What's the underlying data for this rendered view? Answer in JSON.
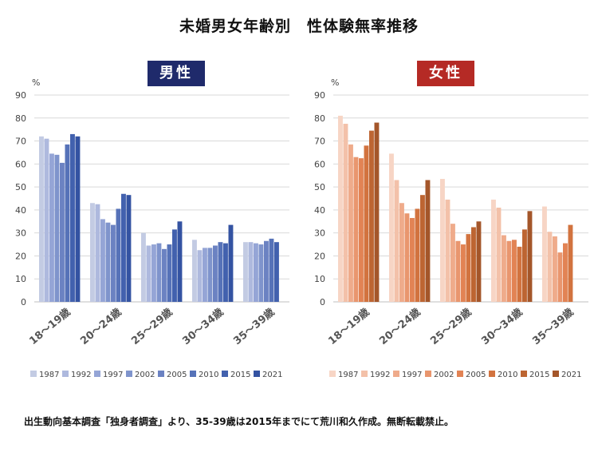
{
  "title": "未婚男女年齢別　性体験無率推移",
  "source_note": "出生動向基本調査「独身者調査」より、35-39歳は2015年までにて荒川和久作成。無断転載禁止。",
  "chart_data": [
    {
      "type": "bar",
      "title": "男性",
      "title_color": "#1f2a6b",
      "ylabel": "%",
      "ylim": [
        0,
        90
      ],
      "yticks": [
        0,
        10,
        20,
        30,
        40,
        50,
        60,
        70,
        80,
        90
      ],
      "grid": true,
      "legend_position": "bottom",
      "categories": [
        "18～19歳",
        "20～24歳",
        "25～29歳",
        "30～34歳",
        "35～39歳"
      ],
      "series": [
        {
          "name": "1987",
          "color": "#c3cbe3",
          "values": [
            72,
            43,
            30,
            27,
            26
          ]
        },
        {
          "name": "1992",
          "color": "#aeb9de",
          "values": [
            71,
            42.5,
            24.5,
            22.5,
            26
          ]
        },
        {
          "name": "1997",
          "color": "#95a5d6",
          "values": [
            64.5,
            36,
            25,
            23.5,
            25.5
          ]
        },
        {
          "name": "2002",
          "color": "#7f94cc",
          "values": [
            64,
            34.5,
            25.5,
            23.5,
            25
          ]
        },
        {
          "name": "2005",
          "color": "#6b82c2",
          "values": [
            60.5,
            33.5,
            23,
            24.5,
            26.5
          ]
        },
        {
          "name": "2010",
          "color": "#5672b8",
          "values": [
            68.5,
            40.5,
            25,
            26,
            27.5
          ]
        },
        {
          "name": "2015",
          "color": "#4261ae",
          "values": [
            73,
            47,
            31.5,
            25.5,
            26
          ]
        },
        {
          "name": "2021",
          "color": "#3453a2",
          "values": [
            72,
            46.5,
            35,
            33.5,
            null
          ]
        }
      ]
    },
    {
      "type": "bar",
      "title": "女性",
      "title_color": "#b52a25",
      "ylabel": "%",
      "ylim": [
        0,
        90
      ],
      "yticks": [
        0,
        10,
        20,
        30,
        40,
        50,
        60,
        70,
        80,
        90
      ],
      "grid": true,
      "legend_position": "bottom",
      "categories": [
        "18～19歳",
        "20～24歳",
        "25～29歳",
        "30～34歳",
        "35～39歳"
      ],
      "series": [
        {
          "name": "1987",
          "color": "#f7d5c5",
          "values": [
            81,
            64.5,
            53.5,
            44.5,
            41.5
          ]
        },
        {
          "name": "1992",
          "color": "#f3c1a9",
          "values": [
            77.5,
            53,
            44.5,
            41,
            30.5
          ]
        },
        {
          "name": "1997",
          "color": "#efab8b",
          "values": [
            68.5,
            43,
            34,
            29,
            28.5
          ]
        },
        {
          "name": "2002",
          "color": "#e9966e",
          "values": [
            63,
            38.5,
            26.5,
            26.5,
            21.5
          ]
        },
        {
          "name": "2005",
          "color": "#e28354",
          "values": [
            62.5,
            36.5,
            25,
            27,
            25.5
          ]
        },
        {
          "name": "2010",
          "color": "#d2733f",
          "values": [
            68,
            40.5,
            29.5,
            24,
            33.5
          ]
        },
        {
          "name": "2015",
          "color": "#bd6532",
          "values": [
            74.5,
            46.5,
            32.5,
            31.5,
            null
          ]
        },
        {
          "name": "2021",
          "color": "#a4562a",
          "values": [
            78,
            53,
            35,
            39.5,
            null
          ]
        }
      ]
    }
  ]
}
